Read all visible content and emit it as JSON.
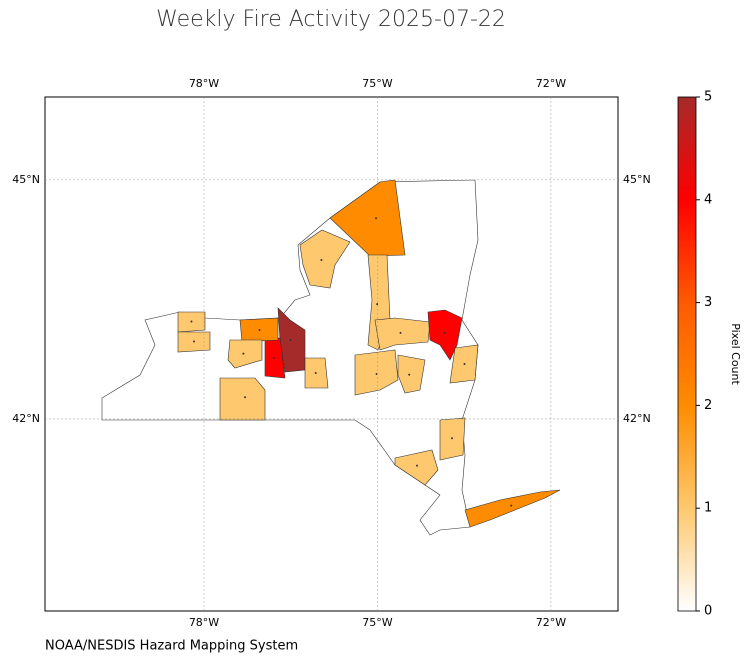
{
  "chart_data": {
    "type": "choropleth",
    "title": "Weekly Fire Activity 2025-07-22",
    "source": "NOAA/NESDIS Hazard Mapping System",
    "colorbar_label": "Pixel Count",
    "values": [
      2,
      1,
      1,
      1,
      4,
      5,
      4,
      2,
      1,
      1,
      1,
      1,
      1,
      1,
      1,
      1,
      1,
      1,
      2
    ],
    "xlim": [
      -80.75,
      -70.84
    ],
    "ylim": [
      39.59,
      46.04
    ],
    "xticks": [
      {
        "value": -78,
        "label": "78°W"
      },
      {
        "value": -75,
        "label": "75°W"
      },
      {
        "value": -72,
        "label": "72°W"
      }
    ],
    "yticks": [
      {
        "value": 42,
        "label": "42°N"
      },
      {
        "value": 45,
        "label": "45°N"
      }
    ],
    "clim": [
      0,
      5
    ],
    "cticks": [
      0,
      1,
      2,
      3,
      4,
      5
    ],
    "colorscale": [
      "#ffffff",
      "#fec86e",
      "#ff8c00",
      "#ff5a00",
      "#ff0000",
      "#a52a2a"
    ],
    "grid": true
  }
}
